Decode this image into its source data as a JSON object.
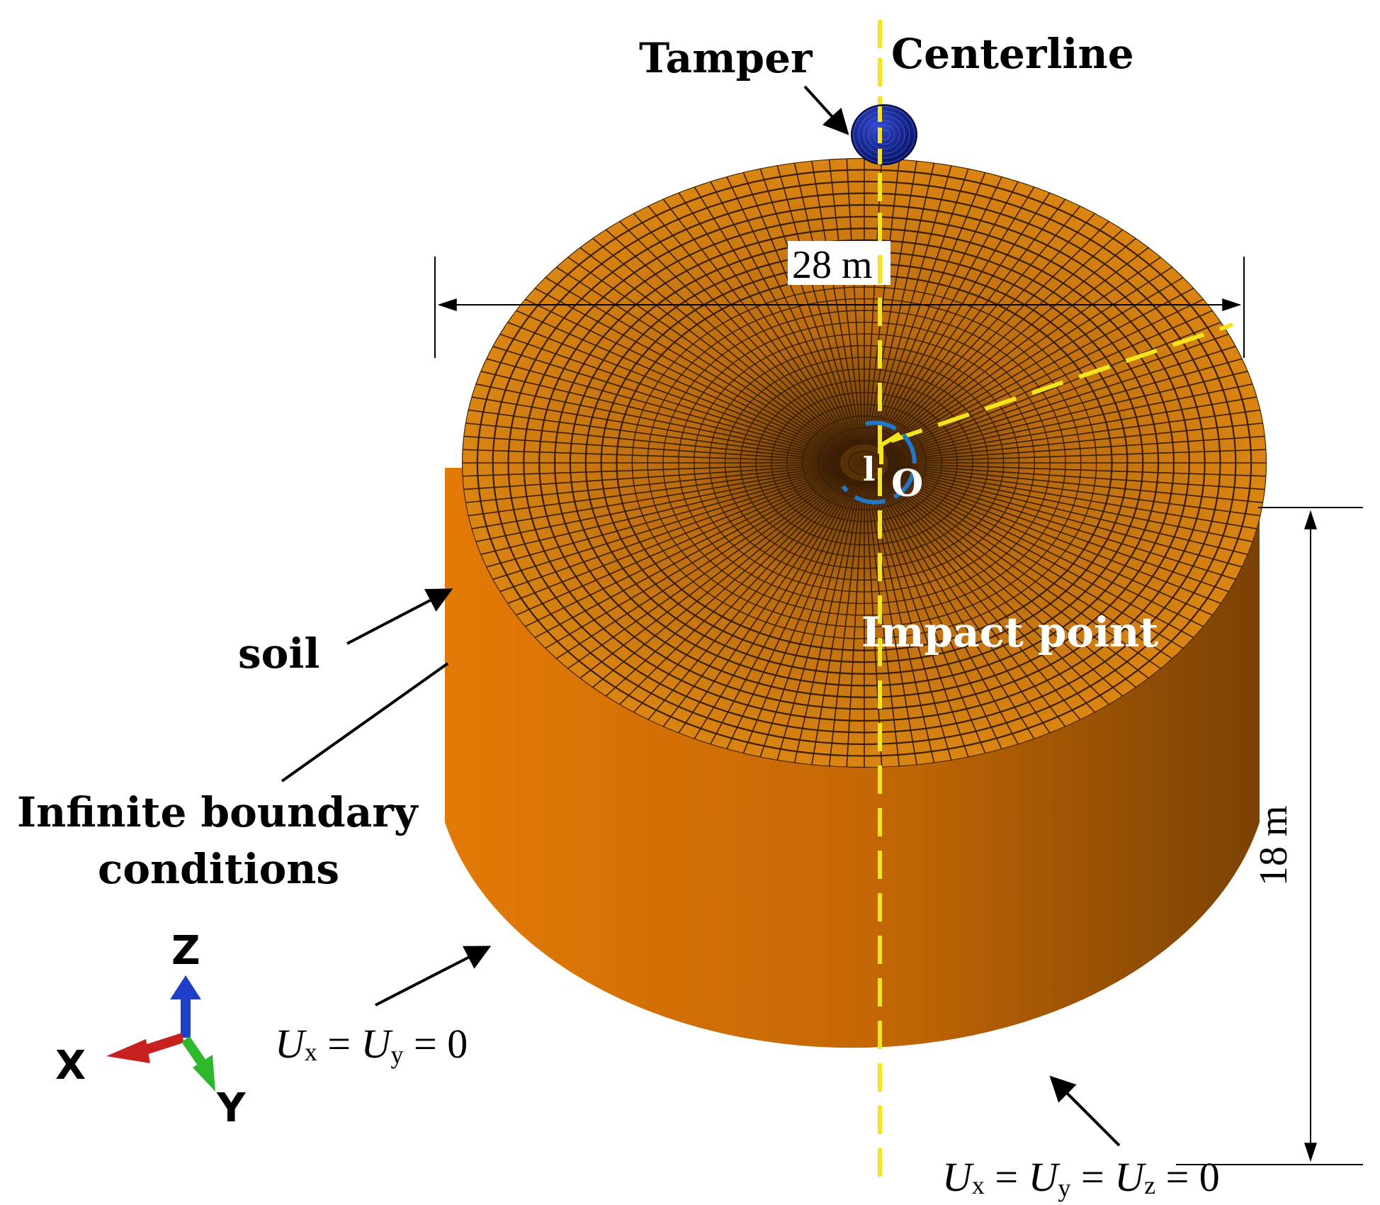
{
  "labels": {
    "tamper": "Tamper",
    "centerline": "Centerline",
    "diameter": "28 m",
    "origin_mark": "l",
    "origin": "O",
    "impact_point": "Impact point",
    "soil": "soil",
    "infinite_line1": "Infinite boundary",
    "infinite_line2": "conditions",
    "height": "18 m"
  },
  "side_boundary": {
    "ux": "U",
    "ux_sub": "x",
    "eq1": " = ",
    "uy": "U",
    "uy_sub": "y",
    "eq2": " = 0"
  },
  "bottom_boundary": {
    "ux": "U",
    "ux_sub": "x",
    "eq1": " = ",
    "uy": "U",
    "uy_sub": "y",
    "eq2": " = ",
    "uz": "U",
    "uz_sub": "z",
    "eq3": " = 0"
  },
  "axes": {
    "z": "Z",
    "x": "X",
    "y": "Y"
  },
  "colors": {
    "soil_light": "#e37a06",
    "soil_mid": "#c86a06",
    "soil_dark": "#7a4204",
    "mesh_top": "#e0890e",
    "mesh_line": "#3a1e04",
    "tamper": "#0b1a8c",
    "centerline": "#f4e61a",
    "origin_ring": "#1f78c8",
    "axis_z": "#1f3fc8",
    "axis_x": "#c81f1f",
    "axis_y": "#2eb82e"
  }
}
